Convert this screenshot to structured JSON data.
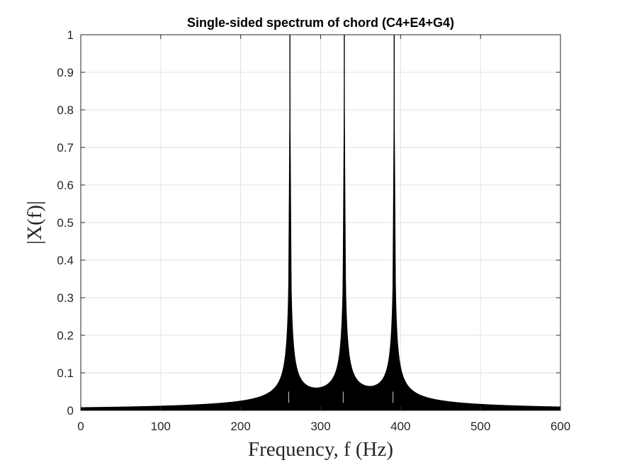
{
  "chart_data": {
    "type": "line",
    "title": "Single-sided spectrum of chord (C4+E4+G4)",
    "xlabel": "Frequency, f (Hz)",
    "ylabel": "|X(f)|",
    "xlim": [
      0,
      600
    ],
    "ylim": [
      0,
      1
    ],
    "x_ticks": [
      0,
      100,
      200,
      300,
      400,
      500,
      600
    ],
    "y_ticks": [
      0,
      0.1,
      0.2,
      0.3,
      0.4,
      0.5,
      0.6,
      0.7,
      0.8,
      0.9,
      1
    ],
    "x_tick_labels": [
      "0",
      "100",
      "200",
      "300",
      "400",
      "500",
      "600"
    ],
    "y_tick_labels": [
      "0",
      "0.1",
      "0.2",
      "0.3",
      "0.4",
      "0.5",
      "0.6",
      "0.7",
      "0.8",
      "0.9",
      "1"
    ],
    "grid": true,
    "series": [
      {
        "peaks": [
          {
            "x": 261.6,
            "y": 1.0
          },
          {
            "x": 329.6,
            "y": 1.0
          },
          {
            "x": 392.0,
            "y": 1.0
          }
        ]
      }
    ],
    "color": "#000000"
  }
}
